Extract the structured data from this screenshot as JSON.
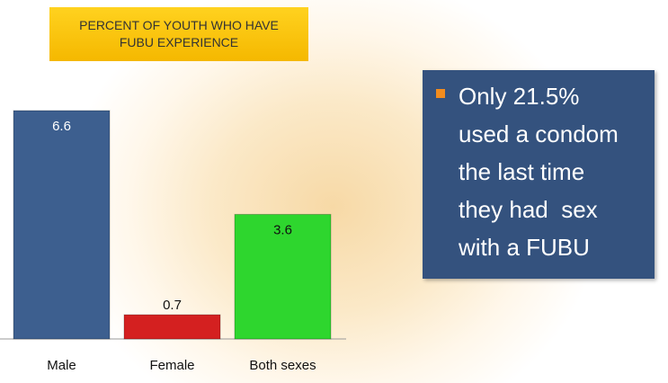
{
  "chart_data": {
    "type": "bar",
    "title": "PERCENT OF YOUTH WHO HAVE FUBU EXPERIENCE",
    "categories": [
      "Male",
      "Female",
      "Both sexes"
    ],
    "values": [
      6.6,
      0.7,
      3.6
    ],
    "colors": [
      "#3d5f8f",
      "#d42020",
      "#2ed62e"
    ],
    "annotation": [
      "Only 21.5%",
      "used a condom",
      "the last time",
      "they had  sex",
      "with a FUBU"
    ]
  }
}
